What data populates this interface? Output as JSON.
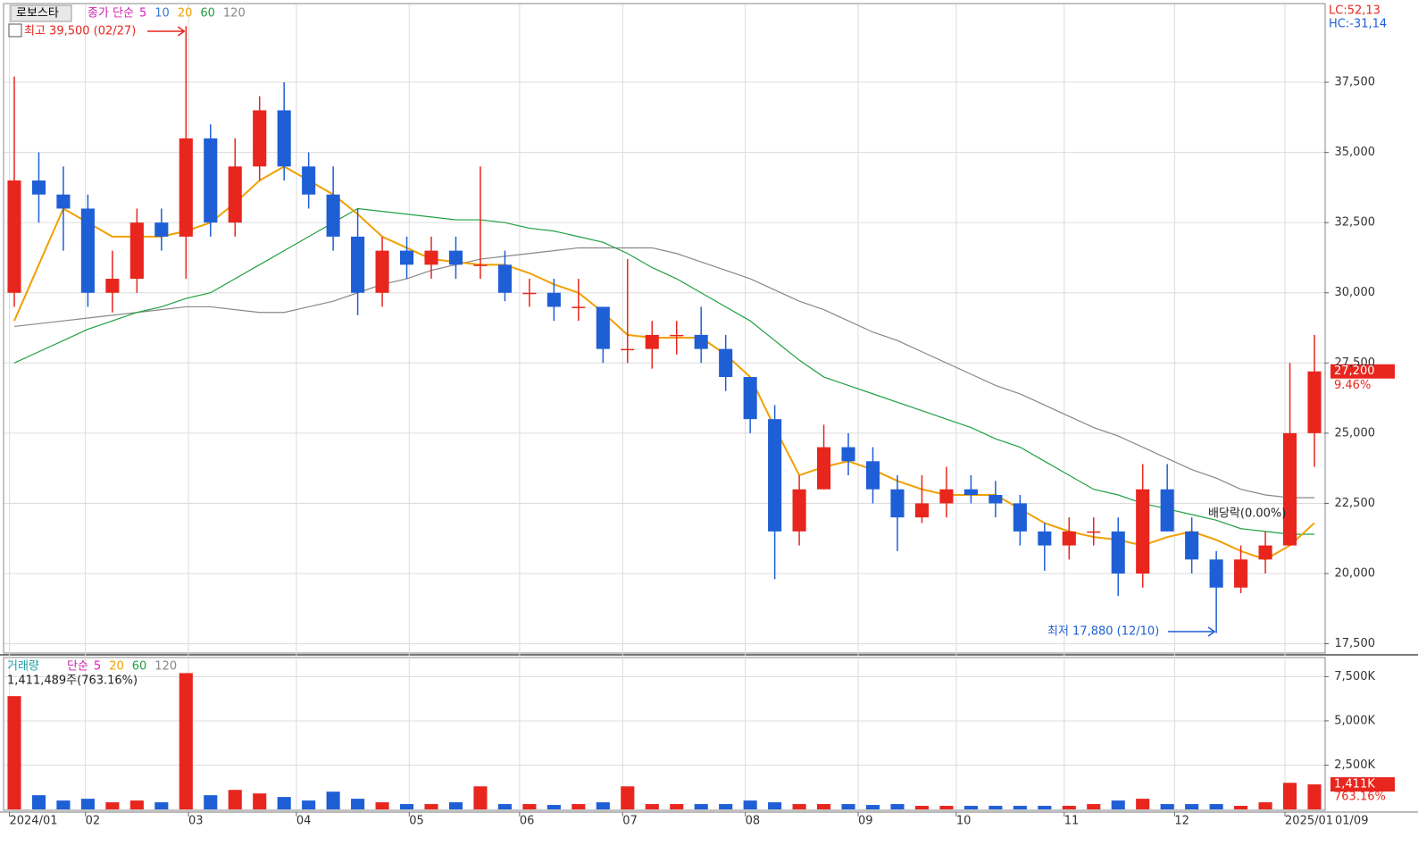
{
  "chart_data": {
    "type": "candlestick",
    "title": "로보스타",
    "price_legend": {
      "label": "종가 단순",
      "periods": [
        {
          "label": 5,
          "color": "#e020c0"
        },
        {
          "label": 10,
          "color": "#3a7bd5"
        },
        {
          "label": 20,
          "color": "#f0a000"
        },
        {
          "label": 60,
          "color": "#20a040"
        },
        {
          "label": 120,
          "color": "#888888"
        }
      ]
    },
    "high_note": "최고 39,500 (02/27)",
    "low_note": "최저 17,880 (12/10)",
    "dividend_note": "배당락(0.00%)",
    "lc": "LC:52,13",
    "hc": "HC:-31,14",
    "last_price": {
      "value": 27200,
      "label": "27,200"
    },
    "last_change": "9.46%",
    "last_date": "01/09",
    "up_color": "#e8261e",
    "down_color": "#1f5fd6",
    "ylim": [
      17200,
      40270
    ],
    "yticks": [
      {
        "value": 17500,
        "label": "17,500"
      },
      {
        "value": 20000,
        "label": "20,000"
      },
      {
        "value": 22500,
        "label": "22,500"
      },
      {
        "value": 25000,
        "label": "25,000"
      },
      {
        "value": 27500,
        "label": "27,500"
      },
      {
        "value": 30000,
        "label": "30,000"
      },
      {
        "value": 32500,
        "label": "32,500"
      },
      {
        "value": 35000,
        "label": "35,000"
      },
      {
        "value": 37500,
        "label": "37,500"
      }
    ],
    "xlim": [
      -0.4,
      53.4
    ],
    "xticks": [
      {
        "value": -0.2,
        "label": "2024/01"
      },
      {
        "value": 2.9,
        "label": "02"
      },
      {
        "value": 7.1,
        "label": "03"
      },
      {
        "value": 11.5,
        "label": "04"
      },
      {
        "value": 16.1,
        "label": "05"
      },
      {
        "value": 20.6,
        "label": "06"
      },
      {
        "value": 24.8,
        "label": "07"
      },
      {
        "value": 29.8,
        "label": "08"
      },
      {
        "value": 34.4,
        "label": "09"
      },
      {
        "value": 38.4,
        "label": "10"
      },
      {
        "value": 42.8,
        "label": "11"
      },
      {
        "value": 47.3,
        "label": "12"
      },
      {
        "value": 51.8,
        "label": "2025/01"
      }
    ],
    "candles": [
      {
        "open": 30000,
        "high": 37700,
        "low": 29500,
        "close": 34000
      },
      {
        "open": 34000,
        "high": 35000,
        "low": 32500,
        "close": 33500
      },
      {
        "open": 33500,
        "high": 34500,
        "low": 31500,
        "close": 33000
      },
      {
        "open": 33000,
        "high": 33500,
        "low": 29500,
        "close": 30000
      },
      {
        "open": 30000,
        "high": 31500,
        "low": 29300,
        "close": 30500
      },
      {
        "open": 30500,
        "high": 33000,
        "low": 30000,
        "close": 32500
      },
      {
        "open": 32500,
        "high": 33000,
        "low": 31500,
        "close": 32000
      },
      {
        "open": 32000,
        "high": 39500,
        "low": 30500,
        "close": 35500
      },
      {
        "open": 35500,
        "high": 36000,
        "low": 32000,
        "close": 32500
      },
      {
        "open": 32500,
        "high": 35500,
        "low": 32000,
        "close": 34500
      },
      {
        "open": 34500,
        "high": 37000,
        "low": 34000,
        "close": 36500
      },
      {
        "open": 36500,
        "high": 37500,
        "low": 34000,
        "close": 34500
      },
      {
        "open": 34500,
        "high": 35000,
        "low": 33000,
        "close": 33500
      },
      {
        "open": 33500,
        "high": 34500,
        "low": 31500,
        "close": 32000
      },
      {
        "open": 32000,
        "high": 33000,
        "low": 29200,
        "close": 30000
      },
      {
        "open": 30000,
        "high": 32000,
        "low": 29500,
        "close": 31500
      },
      {
        "open": 31500,
        "high": 32000,
        "low": 30500,
        "close": 31000
      },
      {
        "open": 31000,
        "high": 32000,
        "low": 30500,
        "close": 31500
      },
      {
        "open": 31500,
        "high": 32000,
        "low": 30500,
        "close": 31000
      },
      {
        "open": 31000,
        "high": 34500,
        "low": 30500,
        "close": 31000
      },
      {
        "open": 31000,
        "high": 31500,
        "low": 29700,
        "close": 30000
      },
      {
        "open": 30000,
        "high": 30500,
        "low": 29500,
        "close": 30000
      },
      {
        "open": 30000,
        "high": 30500,
        "low": 29000,
        "close": 29500
      },
      {
        "open": 29500,
        "high": 30500,
        "low": 29000,
        "close": 29500
      },
      {
        "open": 29500,
        "high": 29500,
        "low": 27500,
        "close": 28000
      },
      {
        "open": 28000,
        "high": 31200,
        "low": 27500,
        "close": 28000
      },
      {
        "open": 28000,
        "high": 29000,
        "low": 27300,
        "close": 28500
      },
      {
        "open": 28500,
        "high": 29000,
        "low": 27800,
        "close": 28500
      },
      {
        "open": 28500,
        "high": 29500,
        "low": 27500,
        "close": 28000
      },
      {
        "open": 28000,
        "high": 28500,
        "low": 26500,
        "close": 27000
      },
      {
        "open": 27000,
        "high": 27000,
        "low": 25000,
        "close": 25500
      },
      {
        "open": 25500,
        "high": 26000,
        "low": 19800,
        "close": 21500
      },
      {
        "open": 21500,
        "high": 23500,
        "low": 21000,
        "close": 23000
      },
      {
        "open": 23000,
        "high": 25300,
        "low": 23000,
        "close": 24500
      },
      {
        "open": 24500,
        "high": 25000,
        "low": 23500,
        "close": 24000
      },
      {
        "open": 24000,
        "high": 24500,
        "low": 22500,
        "close": 23000
      },
      {
        "open": 23000,
        "high": 23500,
        "low": 20800,
        "close": 22000
      },
      {
        "open": 22000,
        "high": 23500,
        "low": 21800,
        "close": 22500
      },
      {
        "open": 22500,
        "high": 23800,
        "low": 22000,
        "close": 23000
      },
      {
        "open": 23000,
        "high": 23500,
        "low": 22500,
        "close": 22800
      },
      {
        "open": 22800,
        "high": 23300,
        "low": 22000,
        "close": 22500
      },
      {
        "open": 22500,
        "high": 22800,
        "low": 21000,
        "close": 21500
      },
      {
        "open": 21500,
        "high": 21800,
        "low": 20100,
        "close": 21000
      },
      {
        "open": 21000,
        "high": 22000,
        "low": 20500,
        "close": 21500
      },
      {
        "open": 21500,
        "high": 22000,
        "low": 21000,
        "close": 21500
      },
      {
        "open": 21500,
        "high": 22000,
        "low": 19200,
        "close": 20000
      },
      {
        "open": 20000,
        "high": 23900,
        "low": 19500,
        "close": 23000
      },
      {
        "open": 23000,
        "high": 23900,
        "low": 21500,
        "close": 21500
      },
      {
        "open": 21500,
        "high": 22000,
        "low": 20000,
        "close": 20500
      },
      {
        "open": 20500,
        "high": 20800,
        "low": 17880,
        "close": 19500
      },
      {
        "open": 19500,
        "high": 21000,
        "low": 19300,
        "close": 20500
      },
      {
        "open": 20500,
        "high": 21500,
        "low": 20000,
        "close": 21000
      },
      {
        "open": 21000,
        "high": 27500,
        "low": 21000,
        "close": 25000
      },
      {
        "open": 25000,
        "high": 28500,
        "low": 23800,
        "close": 27200
      }
    ],
    "ma_series": [
      {
        "color": "#888888",
        "values": [
          28800,
          28900,
          29000,
          29100,
          29200,
          29300,
          29400,
          29500,
          29500,
          29400,
          29300,
          29300,
          29500,
          29700,
          30000,
          30300,
          30500,
          30800,
          31000,
          31200,
          31300,
          31400,
          31500,
          31600,
          31600,
          31600,
          31600,
          31400,
          31100,
          30800,
          30500,
          30100,
          29700,
          29400,
          29000,
          28600,
          28300,
          27900,
          27500,
          27100,
          26700,
          26400,
          26000,
          25600,
          25200,
          24900,
          24500,
          24100,
          23700,
          23400,
          23000,
          22800,
          22700,
          22700
        ]
      },
      {
        "color": "#20a040",
        "values": [
          27500,
          27900,
          28300,
          28700,
          29000,
          29300,
          29500,
          29800,
          30000,
          30500,
          31000,
          31500,
          32000,
          32500,
          33000,
          32900,
          32800,
          32700,
          32600,
          32600,
          32500,
          32300,
          32200,
          32000,
          31800,
          31400,
          30900,
          30500,
          30000,
          29500,
          29000,
          28300,
          27600,
          27000,
          26700,
          26400,
          26100,
          25800,
          25500,
          25200,
          24800,
          24500,
          24000,
          23500,
          23000,
          22800,
          22500,
          22300,
          22100,
          21900,
          21600,
          21500,
          21400,
          21400
        ]
      },
      {
        "color": "#f0a000",
        "values": [
          29000,
          31000,
          33000,
          32500,
          32000,
          32000,
          32000,
          32200,
          32500,
          33200,
          34000,
          34500,
          34000,
          33500,
          32800,
          32000,
          31600,
          31200,
          31100,
          31000,
          31000,
          30700,
          30300,
          30000,
          29300,
          28500,
          28400,
          28400,
          28400,
          27800,
          27000,
          25200,
          23500,
          23800,
          24000,
          23700,
          23300,
          23000,
          22800,
          22800,
          22800,
          22300,
          21800,
          21500,
          21300,
          21200,
          21000,
          21300,
          21500,
          21200,
          20800,
          20500,
          21000,
          21800
        ]
      }
    ],
    "volume": {
      "title": "거래량",
      "legend": {
        "label": "단순",
        "periods": [
          {
            "label": 5,
            "color": "#e020c0"
          },
          {
            "label": 20,
            "color": "#f0a000"
          },
          {
            "label": 60,
            "color": "#20a040"
          },
          {
            "label": 120,
            "color": "#888888"
          }
        ]
      },
      "note": "1,411,489주(763.16%)",
      "last_label": "1,411K",
      "last_change": "763.16%",
      "ylim": [
        0,
        8530
      ],
      "yticks": [
        {
          "value": 2500,
          "label": "2,500K"
        },
        {
          "value": 5000,
          "label": "5,000K"
        },
        {
          "value": 7500,
          "label": "7,500K"
        }
      ],
      "values": [
        6400,
        800,
        500,
        600,
        400,
        500,
        400,
        7700,
        800,
        1100,
        900,
        700,
        500,
        1000,
        600,
        400,
        300,
        300,
        400,
        1300,
        300,
        300,
        250,
        300,
        400,
        1300,
        300,
        300,
        300,
        300,
        500,
        400,
        300,
        300,
        300,
        250,
        300,
        200,
        200,
        200,
        200,
        200,
        200,
        200,
        300,
        500,
        600,
        300,
        300,
        300,
        200,
        400,
        1500,
        1411
      ]
    }
  }
}
